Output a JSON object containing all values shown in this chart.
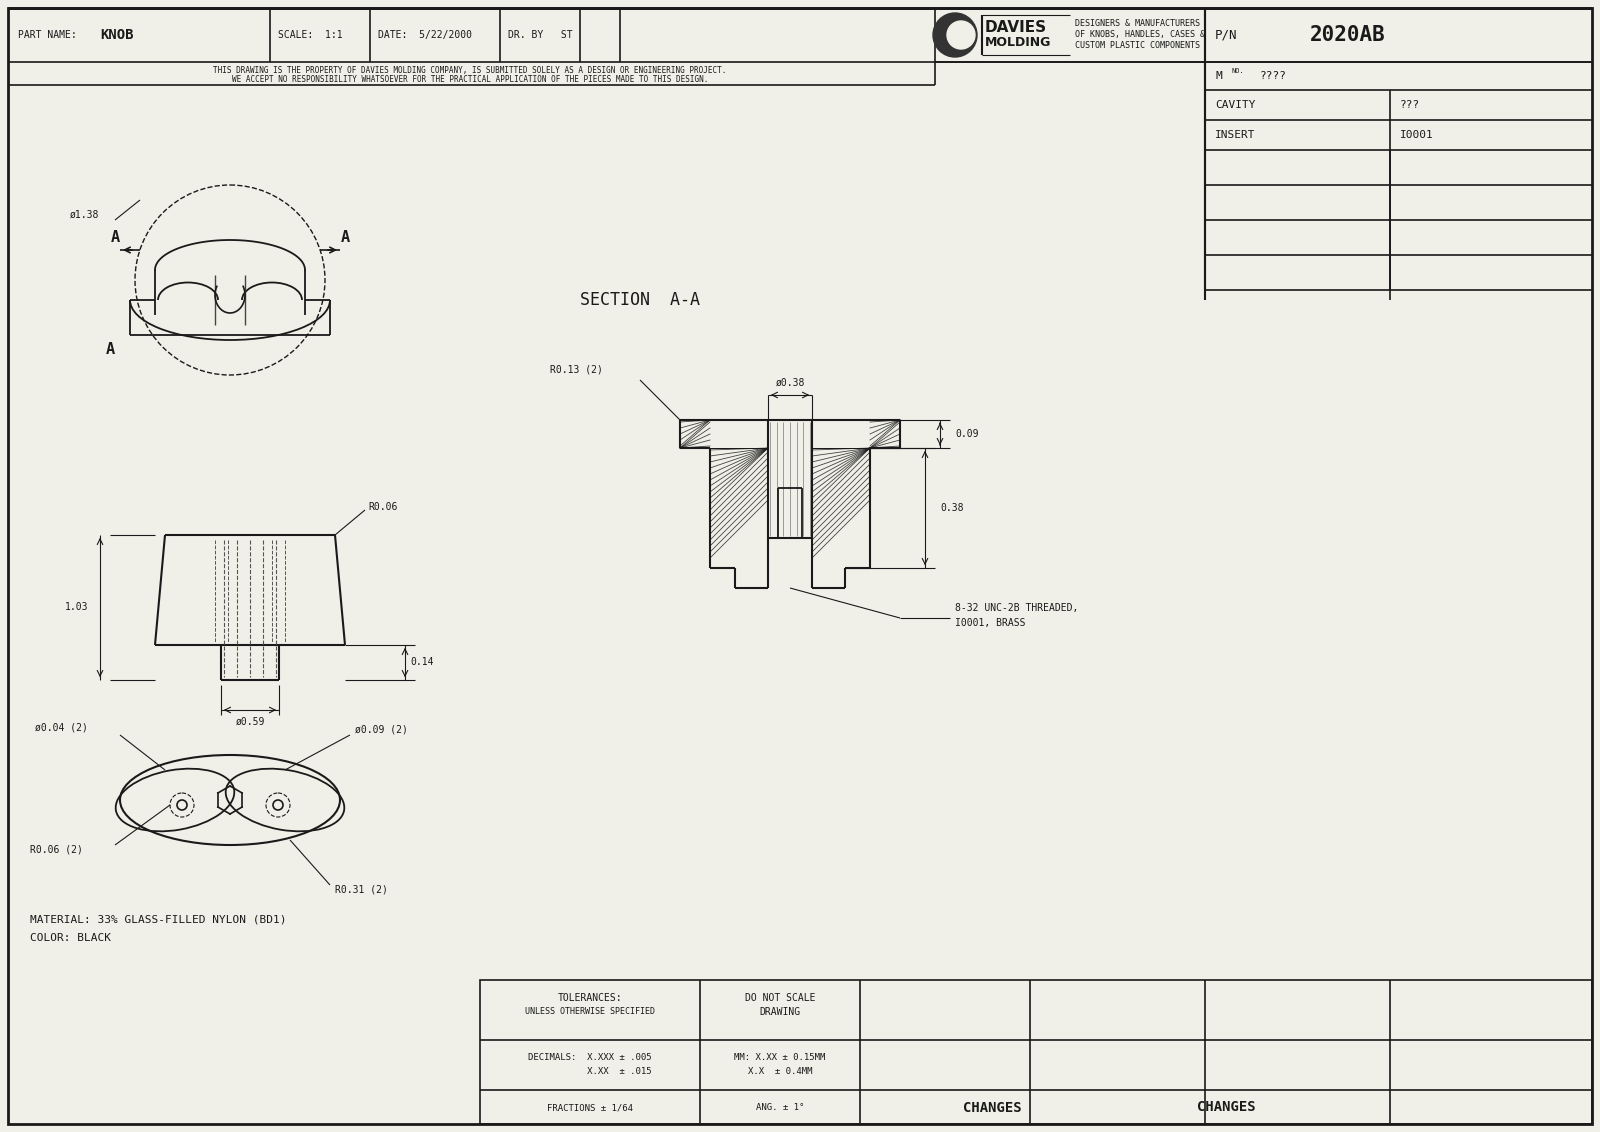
{
  "bg_color": "#f0f0e8",
  "line_color": "#1a1a1a",
  "part_name": "KNOB",
  "scale": "1:1",
  "date": "5/22/2000",
  "dr_by": "ST",
  "tagline1": "DESIGNERS & MANUFACTURERS",
  "tagline2": "OF KNOBS, HANDLES, CASES &",
  "tagline3": "CUSTOM PLASTIC COMPONENTS",
  "pn": "2020AB",
  "mno": "????",
  "cavity": "???",
  "insert": "I0001",
  "disclaimer1": "THIS DRAWING IS THE PROPERTY OF DAVIES MOLDING COMPANY, IS SUBMITTED SOLELY AS A DESIGN OR ENGINEERING PROJECT.",
  "disclaimer2": "WE ACCEPT NO RESPONSIBILITY WHATSOEVER FOR THE PRACTICAL APPLICATION OF THE PIECES MADE TO THIS DESIGN.",
  "material": "MATERIAL: 33% GLASS-FILLED NYLON (BD1)",
  "color_text": "COLOR: BLACK",
  "section_label": "SECTION  A-A",
  "dim_r006": "R0.06",
  "dim_014": "0.14",
  "dim_059": "ø0.59",
  "dim_103": "1.03",
  "dim_138": "ø1.38",
  "dim_r013": "R0.13 (2)",
  "dim_d038": "ø0.38",
  "dim_009": "0.09",
  "dim_038": "0.38",
  "dim_thread1": "8-32 UNC-2B THREADED,",
  "dim_thread2": "I0001, BRASS",
  "dim_d004": "ø0.04 (2)",
  "dim_d009": "ø0.09 (2)",
  "dim_r006b": "R0.06 (2)",
  "dim_r031": "R0.31 (2)",
  "tol_label": "TOLERANCES:",
  "tol_sub": "UNLESS OTHERWISE SPECIFIED",
  "dec_label": "DECIMALS:  X.XXX ± .005",
  "dec_label2": "           X.XX  ± .015",
  "mm_label1": "MM: X.XX ± 0.15MM",
  "mm_label2": "X.X  ± 0.4MM",
  "do_not_scale": "DO NOT SCALE",
  "drawing": "DRAWING",
  "fractions": "FRACTIONS ± 1/64",
  "ang": "ANG. ± 1°",
  "changes": "CHANGES"
}
